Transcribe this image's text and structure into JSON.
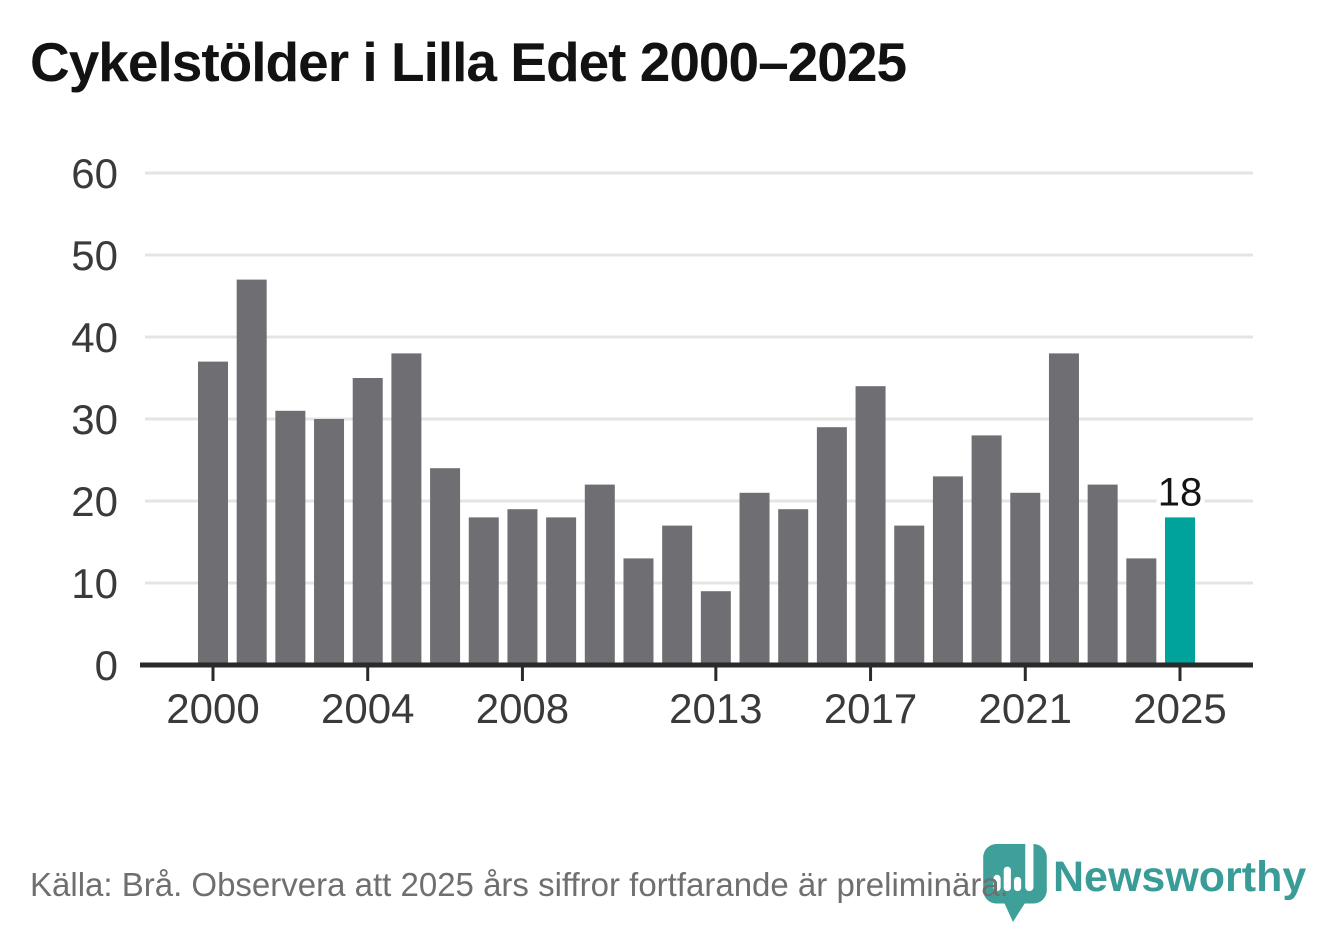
{
  "title": "Cykelstölder i Lilla Edet 2000–2025",
  "footer": {
    "source_text": "Källa: Brå. Observera att 2025 års siffror fortfarande är preliminära.",
    "brand": "Newsworthy"
  },
  "colors": {
    "bar": "#6f6e73",
    "highlight": "#00a39c",
    "brand_teal": "#3f9f99",
    "grid": "#e4e4e4",
    "axis": "#2a2a2a",
    "tick_text": "#3a3a3a",
    "label_text": "#141414",
    "muted_text": "#6f6f6f"
  },
  "chart_data": {
    "type": "bar",
    "title": "Cykelstölder i Lilla Edet 2000–2025",
    "x": [
      2000,
      2001,
      2002,
      2003,
      2004,
      2005,
      2006,
      2007,
      2008,
      2009,
      2010,
      2011,
      2012,
      2013,
      2014,
      2015,
      2016,
      2017,
      2018,
      2019,
      2020,
      2021,
      2022,
      2023,
      2024,
      2025
    ],
    "values": [
      37,
      47,
      31,
      30,
      35,
      38,
      24,
      18,
      19,
      18,
      22,
      13,
      17,
      9,
      21,
      19,
      29,
      34,
      17,
      23,
      28,
      21,
      38,
      22,
      13,
      18
    ],
    "highlight_year": 2025,
    "highlight_label": "18",
    "x_tick_labels": [
      "2000",
      "2004",
      "2008",
      "2013",
      "2017",
      "2021",
      "2025"
    ],
    "x_tick_years": [
      2000,
      2004,
      2008,
      2013,
      2017,
      2021,
      2025
    ],
    "y_ticks": [
      0,
      10,
      20,
      30,
      40,
      50,
      60
    ],
    "ylim": [
      0,
      60
    ],
    "xlabel": "",
    "ylabel": "",
    "grid": true,
    "legend": "none"
  }
}
